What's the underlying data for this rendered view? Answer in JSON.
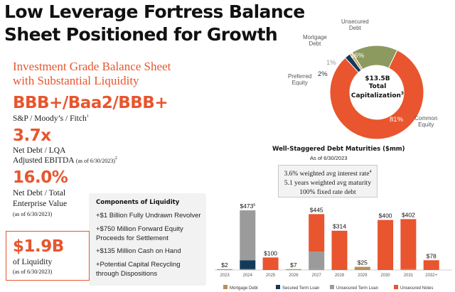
{
  "title_line1": "Low Leverage Fortress Balance",
  "title_line2": "Sheet Positioned for Growth",
  "subtitle_line1": "Investment Grade Balance Sheet",
  "subtitle_line2": "with Substantial Liquidity",
  "rating": {
    "value": "BBB+/Baa2/BBB+",
    "label": "S&P / Moody’s / Fitch",
    "note": "1"
  },
  "net_debt_lqa": {
    "value": "3.7x",
    "label1": "Net Debt / LQA",
    "label2": "Adjusted EBITDA",
    "as_of": "(as of 6/30/2023)",
    "note": "2"
  },
  "net_debt_ev": {
    "value": "16.0%",
    "label1": "Net Debt / Total",
    "label2": "Enterprise Value",
    "as_of": "(as of 6/30/2023)"
  },
  "liquidity": {
    "value": "$1.9B",
    "label": "of Liquidity",
    "as_of": "(as of 6/30/2023)"
  },
  "components": {
    "title": "Components of Liquidity",
    "items": [
      "+$1 Billion Fully Undrawn Revolver",
      "+$750 Million Forward Equity Proceeds for Settlement",
      "+$135 Million Cash on Hand",
      "+Potential Capital Recycling through Dispositions"
    ]
  },
  "capitalization": {
    "center_value": "$13.5B",
    "center_label1": "Total",
    "center_label2": "Capitalization",
    "center_note": "3",
    "slices": [
      {
        "name": "Common Equity",
        "label1": "Common",
        "label2": "Equity",
        "value": 81,
        "pct_label": "81%",
        "color": "#e8552e"
      },
      {
        "name": "Preferred Equity",
        "label1": "Preferred",
        "label2": "Equity",
        "value": 2,
        "pct_label": "2%",
        "color": "#143a5a"
      },
      {
        "name": "Mortgage Debt",
        "label1": "Mortgage",
        "label2": "Debt",
        "value": 1,
        "pct_label": "1%",
        "color": "#c9a86a"
      },
      {
        "name": "Unsecured Debt",
        "label1": "Unsecured",
        "label2": "Debt",
        "value": 16,
        "pct_label": "16%",
        "color": "#8c9a5f"
      }
    ]
  },
  "maturities": {
    "title": "Well-Staggered Debt Maturities ($mm)",
    "subtitle": "As of 6/30/2023",
    "info_lines": [
      "3.6% weighted avg interest rate",
      "5.1 years weighted avg maturity",
      "100% fixed rate debt"
    ],
    "info_note": "4",
    "total_note": "5"
  },
  "chart_data": {
    "type": "bar",
    "stacked": true,
    "title": "Well-Staggered Debt Maturities ($mm)",
    "subtitle": "As of 6/30/2023",
    "xlabel": "",
    "ylabel": "",
    "categories": [
      "2023",
      "2024",
      "2025",
      "2026",
      "2027",
      "2028",
      "2029",
      "2030",
      "2031",
      "2032+"
    ],
    "totals_labels": [
      "$2",
      "$473",
      "$100",
      "$7",
      "$445",
      "$314",
      "$25",
      "$400",
      "$402",
      "$78"
    ],
    "series": [
      {
        "name": "Mortgage Debt",
        "color": "#b8905a",
        "values": [
          2,
          3,
          0,
          7,
          5,
          0,
          25,
          0,
          2,
          0
        ]
      },
      {
        "name": "Secured Term Loan",
        "color": "#143a5a",
        "values": [
          0,
          70,
          0,
          0,
          0,
          0,
          0,
          0,
          0,
          0
        ]
      },
      {
        "name": "Unsecured Term Loan",
        "color": "#9b9b9b",
        "values": [
          0,
          400,
          0,
          0,
          140,
          0,
          0,
          0,
          0,
          0
        ]
      },
      {
        "name": "Unsecured Notes",
        "color": "#e8552e",
        "values": [
          0,
          0,
          100,
          0,
          300,
          314,
          0,
          400,
          400,
          78
        ]
      }
    ],
    "ylim": [
      0,
      500
    ]
  }
}
